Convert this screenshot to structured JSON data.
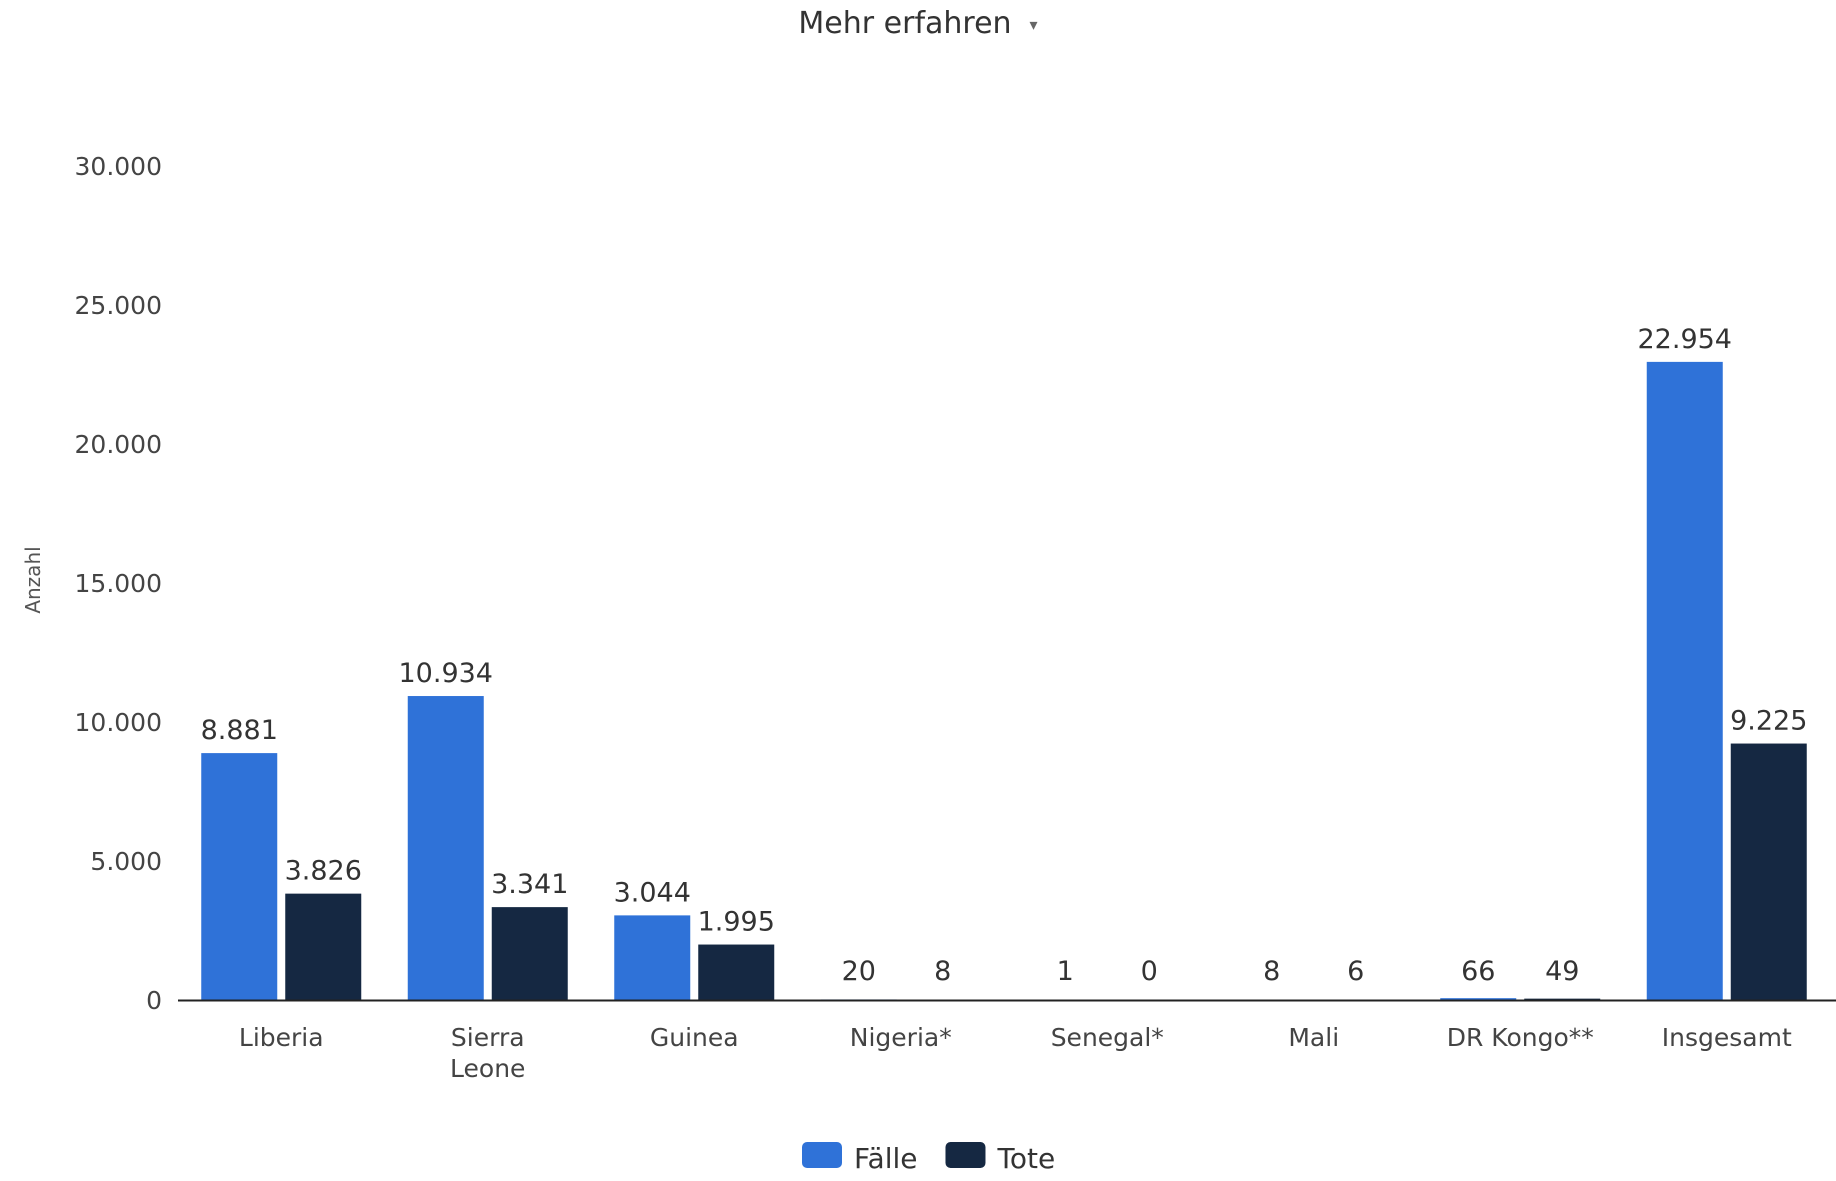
{
  "header": {
    "link_label": "Mehr erfahren",
    "caret": "▾"
  },
  "chart_data": {
    "type": "bar",
    "ylabel": "Anzahl",
    "ylim": [
      0,
      30000
    ],
    "yticks": [
      0,
      5000,
      10000,
      15000,
      20000,
      25000,
      30000
    ],
    "ytick_labels": [
      "0",
      "5.000",
      "10.000",
      "15.000",
      "20.000",
      "25.000",
      "30.000"
    ],
    "categories": [
      [
        "Liberia"
      ],
      [
        "Sierra",
        "Leone"
      ],
      [
        "Guinea"
      ],
      [
        "Nigeria*"
      ],
      [
        "Senegal*"
      ],
      [
        "Mali"
      ],
      [
        "DR Kongo**"
      ],
      [
        "Insgesamt"
      ]
    ],
    "series": [
      {
        "name": "Fälle",
        "color": "#2f72d8",
        "values": [
          8881,
          10934,
          3044,
          20,
          1,
          8,
          66,
          22954
        ],
        "labels": [
          "8.881",
          "10.934",
          "3.044",
          "20",
          "1",
          "8",
          "66",
          "22.954"
        ]
      },
      {
        "name": "Tote",
        "color": "#152842",
        "values": [
          3826,
          3341,
          1995,
          8,
          0,
          6,
          49,
          9225
        ],
        "labels": [
          "3.826",
          "3.341",
          "1.995",
          "8",
          "0",
          "6",
          "49",
          "9.225"
        ]
      }
    ],
    "grid": false,
    "legend_position": "bottom-center"
  }
}
